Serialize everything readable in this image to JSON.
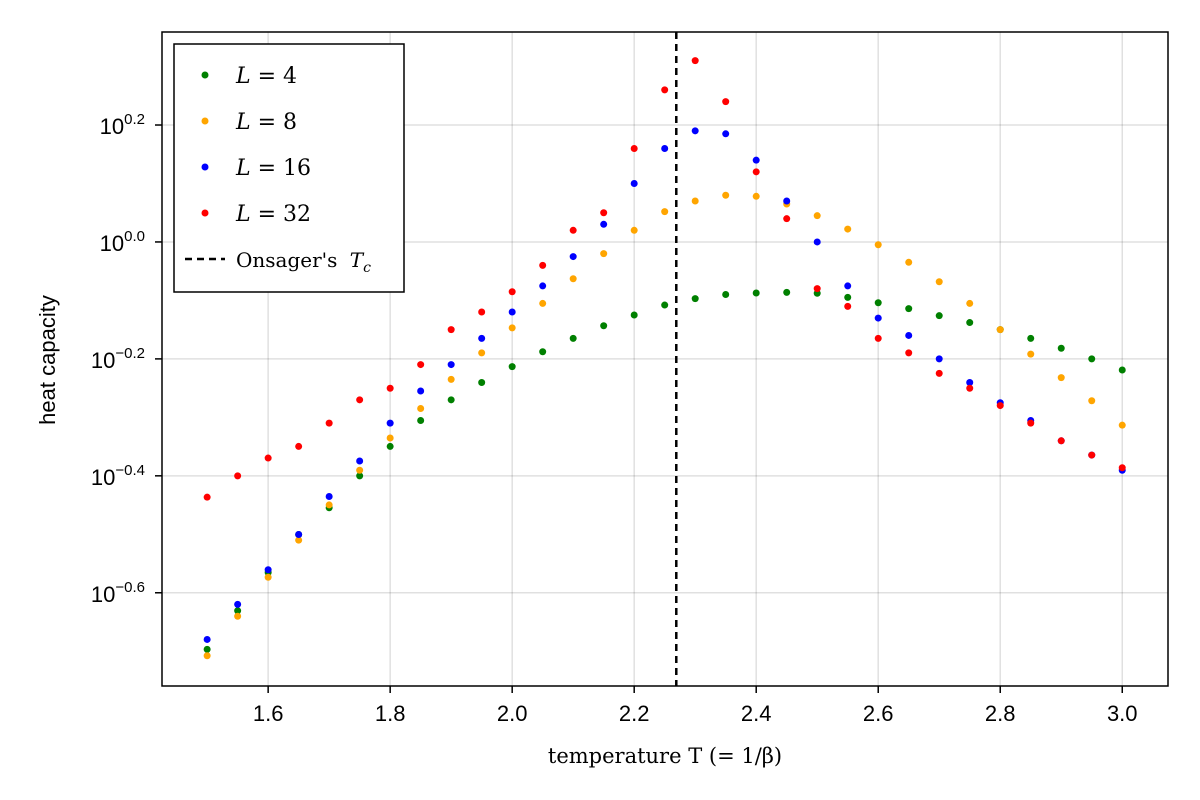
{
  "chart_data": {
    "type": "scatter",
    "title": "",
    "xlabel": "temperature T (= 1/β)",
    "ylabel": "heat capacity",
    "xlim": [
      1.426,
      3.075
    ],
    "ylim": [
      0.174,
      2.286
    ],
    "yscale": "log10",
    "grid": true,
    "legend_position": "top-left",
    "x_ticks": [
      1.6,
      1.8,
      2.0,
      2.2,
      2.4,
      2.6,
      2.8,
      3.0
    ],
    "x_tick_labels": [
      "1.6",
      "1.8",
      "2.0",
      "2.2",
      "2.4",
      "2.6",
      "2.8",
      "3.0"
    ],
    "y_ticks": [
      0.2,
      0.0,
      -0.2,
      -0.4,
      -0.6
    ],
    "y_tick_labels": [
      {
        "base": "10",
        "exp": "0.2"
      },
      {
        "base": "10",
        "exp": "0.0"
      },
      {
        "base": "10",
        "exp": "−0.2"
      },
      {
        "base": "10",
        "exp": "−0.4"
      },
      {
        "base": "10",
        "exp": "−0.6"
      }
    ],
    "x": [
      1.5,
      1.55,
      1.6,
      1.65,
      1.7,
      1.75,
      1.8,
      1.85,
      1.9,
      1.95,
      2.0,
      2.05,
      2.1,
      2.15,
      2.2,
      2.25,
      2.3,
      2.35,
      2.4,
      2.45,
      2.5,
      2.55,
      2.6,
      2.65,
      2.7,
      2.75,
      2.8,
      2.85,
      2.9,
      2.95,
      3.0
    ],
    "series": [
      {
        "name": "L = 4",
        "var": "L",
        "value": "4",
        "color": "#008000",
        "values": [
          0.201,
          0.234,
          0.272,
          0.316,
          0.351,
          0.398,
          0.447,
          0.495,
          0.537,
          0.575,
          0.612,
          0.649,
          0.684,
          0.719,
          0.75,
          0.78,
          0.8,
          0.813,
          0.818,
          0.82,
          0.817,
          0.804,
          0.787,
          0.769,
          0.748,
          0.728,
          0.708,
          0.684,
          0.658,
          0.631,
          0.604
        ]
      },
      {
        "name": "L = 8",
        "var": "L",
        "value": "8",
        "color": "#FFA500",
        "values": [
          0.196,
          0.229,
          0.267,
          0.309,
          0.355,
          0.407,
          0.462,
          0.519,
          0.582,
          0.646,
          0.713,
          0.785,
          0.865,
          0.955,
          1.047,
          1.127,
          1.175,
          1.202,
          1.197,
          1.161,
          1.109,
          1.052,
          0.989,
          0.923,
          0.855,
          0.785,
          0.708,
          0.643,
          0.586,
          0.535,
          0.486
        ]
      },
      {
        "name": "L = 16",
        "var": "L",
        "value": "16",
        "color": "#0000FF",
        "values": [
          0.209,
          0.24,
          0.275,
          0.316,
          0.367,
          0.422,
          0.49,
          0.556,
          0.617,
          0.684,
          0.759,
          0.841,
          0.944,
          1.072,
          1.259,
          1.445,
          1.549,
          1.531,
          1.38,
          1.175,
          1.0,
          0.841,
          0.741,
          0.692,
          0.631,
          0.575,
          0.531,
          0.495,
          0.457,
          0.432,
          0.407
        ]
      },
      {
        "name": "L = 32",
        "var": "L",
        "value": "32",
        "color": "#FF0000",
        "values": [
          0.366,
          0.398,
          0.427,
          0.447,
          0.49,
          0.537,
          0.562,
          0.617,
          0.708,
          0.759,
          0.822,
          0.912,
          1.047,
          1.122,
          1.445,
          1.82,
          2.042,
          1.738,
          1.318,
          1.096,
          0.832,
          0.776,
          0.684,
          0.646,
          0.596,
          0.562,
          0.525,
          0.49,
          0.457,
          0.432,
          0.411
        ]
      }
    ],
    "annotations": [
      {
        "type": "vline",
        "x": 2.269,
        "style": "dashed",
        "color": "#000000",
        "name": "Onsager's Tc",
        "label_text": "Onsager's ",
        "label_var": "T",
        "label_sub": "c"
      }
    ]
  }
}
